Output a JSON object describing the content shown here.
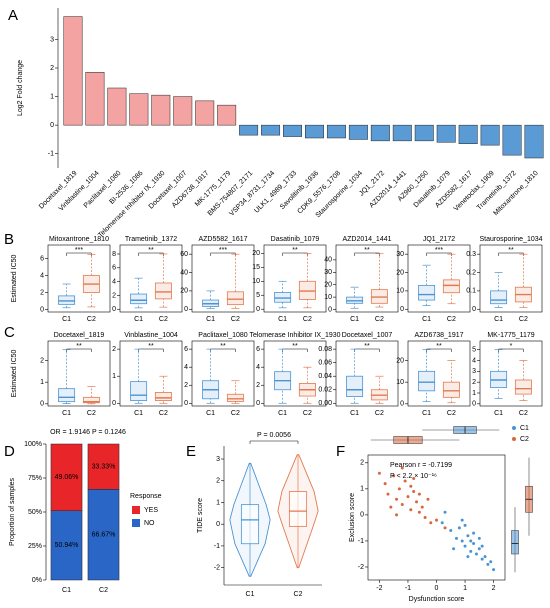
{
  "panel_labels": [
    "A",
    "B",
    "C",
    "D",
    "E",
    "F"
  ],
  "chart_data": [
    {
      "type": "bar",
      "ylabel": "Log2 Fold change",
      "categories": [
        "Docetaxel_1819",
        "Vinblastine_1004",
        "Paclitaxel_1080",
        "BI-2536_1086",
        "Telomerase Inhibitor IX_1930",
        "Docetaxel_1007",
        "AZD6738_1917",
        "MK-1775_1179",
        "BMS-754807_2171",
        "VSP34_8731_1734",
        "ULK1_4989_1733",
        "Savolitinib_1936",
        "CDK9_5576_1708",
        "Staurosporine_1034",
        "JQ1_2172",
        "AZD2014_1441",
        "AZ960_1250",
        "Dasatinib_1079",
        "AZD5582_1617",
        "Venetoclax_1909",
        "Trametinib_1372",
        "Mitoxantrone_1810"
      ],
      "values": [
        3.8,
        1.85,
        1.3,
        1.1,
        1.05,
        1.0,
        0.85,
        0.7,
        -0.35,
        -0.35,
        -0.4,
        -0.45,
        -0.45,
        -0.5,
        -0.55,
        -0.55,
        -0.55,
        -0.6,
        -0.65,
        -0.7,
        -1.05,
        -1.15
      ],
      "colors": [
        "#f4a3a3",
        "#f4a3a3",
        "#f4a3a3",
        "#f4a3a3",
        "#f4a3a3",
        "#f4a3a3",
        "#f4a3a3",
        "#f4a3a3",
        "#5b9bd5",
        "#5b9bd5",
        "#5b9bd5",
        "#5b9bd5",
        "#5b9bd5",
        "#5b9bd5",
        "#5b9bd5",
        "#5b9bd5",
        "#5b9bd5",
        "#5b9bd5",
        "#5b9bd5",
        "#5b9bd5",
        "#5b9bd5",
        "#5b9bd5"
      ],
      "label_colors": [
        "#d23a2a",
        "#d23a2a",
        "#d23a2a",
        "#000000",
        "#d23a2a",
        "#d23a2a",
        "#d23a2a",
        "#d23a2a",
        "#000000",
        "#000000",
        "#000000",
        "#000000",
        "#000000",
        "#d23a2a",
        "#d23a2a",
        "#d23a2a",
        "#000000",
        "#d23a2a",
        "#d23a2a",
        "#000000",
        "#d23a2a",
        "#d23a2a"
      ],
      "ylim": [
        -1.5,
        4.1
      ],
      "yticks": [
        -1,
        0,
        1,
        2,
        3
      ]
    },
    {
      "type": "box",
      "ylabel": "Estimated IC50",
      "categories": [
        "C1",
        "C2"
      ],
      "colors": [
        "#4a94d4",
        "#e3794f"
      ],
      "panels": [
        {
          "title": "Mitoxantrone_1810",
          "annotation": "***",
          "ylim": [
            -0.3,
            7.6
          ],
          "yticks": [
            0,
            2,
            4,
            6
          ],
          "boxes": [
            {
              "min": 0.2,
              "q1": 0.6,
              "median": 1.0,
              "q3": 1.6,
              "max": 3.0
            },
            {
              "min": 0.3,
              "q1": 2.0,
              "median": 3.0,
              "q3": 4.0,
              "max": 6.5
            }
          ]
        },
        {
          "title": "Trametinib_1372",
          "annotation": "**",
          "ylim": [
            -0.4,
            9.3
          ],
          "yticks": [
            0,
            2,
            4,
            6,
            8
          ],
          "boxes": [
            {
              "min": 0.2,
              "q1": 0.8,
              "median": 1.3,
              "q3": 2.2,
              "max": 4.5
            },
            {
              "min": 0.3,
              "q1": 1.5,
              "median": 2.5,
              "q3": 3.8,
              "max": 8
            }
          ]
        },
        {
          "title": "AZD5582_1617",
          "annotation": "***",
          "ylim": [
            -3,
            70
          ],
          "yticks": [
            0,
            20,
            40,
            60
          ],
          "boxes": [
            {
              "min": 1,
              "q1": 3,
              "median": 6,
              "q3": 10,
              "max": 20
            },
            {
              "min": 1,
              "q1": 5,
              "median": 11,
              "q3": 19,
              "max": 60
            }
          ]
        },
        {
          "title": "Dasatinib_1079",
          "annotation": "**",
          "ylim": [
            -1,
            23
          ],
          "yticks": [
            0,
            5,
            10,
            15,
            20
          ],
          "boxes": [
            {
              "min": 0.5,
              "q1": 2.5,
              "median": 4,
              "q3": 6,
              "max": 10
            },
            {
              "min": 0.5,
              "q1": 3.5,
              "median": 6.5,
              "q3": 10,
              "max": 20
            }
          ]
        },
        {
          "title": "AZD2014_1441",
          "annotation": "**",
          "ylim": [
            -2,
            52
          ],
          "yticks": [
            0,
            10,
            20,
            30,
            40
          ],
          "boxes": [
            {
              "min": 1,
              "q1": 5,
              "median": 7,
              "q3": 10,
              "max": 18
            },
            {
              "min": 2,
              "q1": 5,
              "median": 10,
              "q3": 16,
              "max": 45
            }
          ]
        },
        {
          "title": "JQ1_2172",
          "annotation": "***",
          "ylim": [
            -1.5,
            35
          ],
          "yticks": [
            0,
            10,
            20,
            30
          ],
          "boxes": [
            {
              "min": 2,
              "q1": 5,
              "median": 8,
              "q3": 13,
              "max": 24
            },
            {
              "min": 3,
              "q1": 9,
              "median": 13,
              "q3": 16,
              "max": 30
            }
          ]
        },
        {
          "title": "Staurosporine_1034",
          "annotation": "**",
          "ylim": [
            -0.015,
            0.35
          ],
          "yticks": [
            0,
            0.1,
            0.2,
            0.3
          ],
          "boxes": [
            {
              "min": 0.01,
              "q1": 0.03,
              "median": 0.05,
              "q3": 0.1,
              "max": 0.2
            },
            {
              "min": 0.01,
              "q1": 0.04,
              "median": 0.08,
              "q3": 0.12,
              "max": 0.3
            }
          ]
        }
      ]
    },
    {
      "type": "box",
      "ylabel": "Estimated IC50",
      "categories": [
        "C1",
        "C2"
      ],
      "colors": [
        "#4a94d4",
        "#e3794f"
      ],
      "panels": [
        {
          "title": "Docetaxel_1819",
          "annotation": "**",
          "ylim": [
            -0.1,
            2.9
          ],
          "yticks": [
            0,
            1,
            2
          ],
          "boxes": [
            {
              "min": 0.01,
              "q1": 0.1,
              "median": 0.3,
              "q3": 0.7,
              "max": 2.5
            },
            {
              "min": 0,
              "q1": 0.05,
              "median": 0.1,
              "q3": 0.3,
              "max": 0.8
            }
          ]
        },
        {
          "title": "Vinblastine_1004",
          "annotation": "**",
          "ylim": [
            -0.1,
            2.3
          ],
          "yticks": [
            0,
            1,
            2
          ],
          "boxes": [
            {
              "min": 0,
              "q1": 0.1,
              "median": 0.3,
              "q3": 0.8,
              "max": 2
            },
            {
              "min": 0,
              "q1": 0.1,
              "median": 0.2,
              "q3": 0.4,
              "max": 1
            }
          ]
        },
        {
          "title": "Paclitaxel_1080",
          "annotation": "**",
          "ylim": [
            -0.3,
            6.9
          ],
          "yticks": [
            0,
            2,
            4,
            6
          ],
          "boxes": [
            {
              "min": 0,
              "q1": 0.5,
              "median": 1.5,
              "q3": 2.5,
              "max": 6
            },
            {
              "min": 0,
              "q1": 0.2,
              "median": 0.5,
              "q3": 1.0,
              "max": 2.5
            }
          ]
        },
        {
          "title": "Telomerase Inhibitor IX_1930",
          "annotation": "**",
          "ylim": [
            -0.3,
            6.9
          ],
          "yticks": [
            0,
            2,
            4,
            6
          ],
          "boxes": [
            {
              "min": 0,
              "q1": 1.5,
              "median": 2.5,
              "q3": 3.5,
              "max": 6
            },
            {
              "min": 0,
              "q1": 0.8,
              "median": 1.5,
              "q3": 2.2,
              "max": 4
            }
          ]
        },
        {
          "title": "Docetaxel_1007",
          "annotation": "**",
          "ylim": [
            -0.004,
            0.092
          ],
          "yticks": [
            {
              "value": 0,
              "label": "0.00"
            },
            0.02,
            0.04,
            0.06,
            0.08
          ],
          "boxes": [
            {
              "min": 0,
              "q1": 0.01,
              "median": 0.02,
              "q3": 0.04,
              "max": 0.08
            },
            {
              "min": 0,
              "q1": 0.005,
              "median": 0.012,
              "q3": 0.02,
              "max": 0.04
            }
          ]
        },
        {
          "title": "AZD6738_1917",
          "annotation": "**",
          "ylim": [
            -1,
            29
          ],
          "yticks": [
            0,
            10,
            20
          ],
          "boxes": [
            {
              "min": 1,
              "q1": 6,
              "median": 10,
              "q3": 15,
              "max": 25
            },
            {
              "min": 0.5,
              "q1": 3,
              "median": 6,
              "q3": 10,
              "max": 20
            }
          ]
        },
        {
          "title": "MK-1775_1179",
          "annotation": "*",
          "ylim": [
            -0.2,
            5.8
          ],
          "yticks": [
            0,
            1,
            2,
            3,
            4,
            5
          ],
          "boxes": [
            {
              "min": 0.5,
              "q1": 1.5,
              "median": 2.2,
              "q3": 3,
              "max": 5
            },
            {
              "min": 0.3,
              "q1": 0.9,
              "median": 1.4,
              "q3": 2.2,
              "max": 4
            }
          ]
        }
      ]
    },
    {
      "type": "stacked_bar",
      "title": "OR = 1.9146 P = 0.1246",
      "ylabel": "Proportion of samples",
      "legend_title": "Response",
      "categories": [
        "C1",
        "C2"
      ],
      "series": [
        {
          "name": "NO",
          "color": "#2a66c6",
          "values": [
            50.94,
            66.67
          ],
          "value_labels": [
            "50.94%",
            "66.67%"
          ]
        },
        {
          "name": "YES",
          "color": "#e8262a",
          "values": [
            49.06,
            33.33
          ],
          "value_labels": [
            "49.06%",
            "33.33%"
          ]
        }
      ],
      "ylim": [
        0,
        100
      ],
      "yticks": [
        {
          "value": 0,
          "label": "0%"
        },
        {
          "value": 25,
          "label": "25%"
        },
        {
          "value": 50,
          "label": "50%"
        },
        {
          "value": 75,
          "label": "75%"
        },
        {
          "value": 100,
          "label": "100%"
        }
      ]
    },
    {
      "type": "violin",
      "annotation": "P = 0.0056",
      "ylabel": "TIDE score",
      "categories": [
        "C1",
        "C2"
      ],
      "colors": [
        "#4a94d4",
        "#e3794f"
      ],
      "boxes": [
        {
          "min": -2.4,
          "q1": -0.9,
          "median": 0.2,
          "q3": 0.9,
          "max": 2.8
        },
        {
          "min": -2.0,
          "q1": -0.1,
          "median": 0.6,
          "q3": 1.5,
          "max": 3.2
        }
      ],
      "ylim": [
        -2.8,
        3.6
      ],
      "yticks": [
        -2,
        -1,
        0,
        1,
        2,
        3
      ]
    },
    {
      "type": "scatter",
      "xlabel": "Dysfunction score",
      "ylabel": "Exclusion score",
      "annotations": [
        "Pearson r = -0.7199",
        "P < 2.2 × 10⁻¹⁶"
      ],
      "series": [
        {
          "name": "C1",
          "color": "#4a94d4",
          "x": [
            0.2,
            0.5,
            0.7,
            0.9,
            1.0,
            1.1,
            1.2,
            1.3,
            1.4,
            1.5,
            1.6,
            1.7,
            1.8,
            1.9,
            0.8,
            1.0,
            1.2,
            0.6,
            1.5,
            2.0,
            0.3,
            1.1,
            1.6,
            0.9,
            1.3
          ],
          "y": [
            -0.3,
            -0.6,
            -0.9,
            -1.0,
            -1.2,
            -0.8,
            -1.4,
            -1.1,
            -1.5,
            -1.3,
            -1.7,
            -1.6,
            -1.9,
            -1.8,
            -0.5,
            -0.4,
            -1.0,
            -1.3,
            -0.9,
            -2.1,
            0.1,
            -1.6,
            -1.2,
            -0.2,
            -0.7
          ],
          "x_box": {
            "min": -0.5,
            "q1": 0.6,
            "median": 1.0,
            "q3": 1.4,
            "max": 2.2
          },
          "y_box": {
            "min": -2.2,
            "q1": -1.5,
            "median": -1.1,
            "q3": -0.6,
            "max": 0.3
          }
        },
        {
          "name": "C2",
          "color": "#d9663c",
          "x": [
            -2.0,
            -1.8,
            -1.7,
            -1.5,
            -1.4,
            -1.3,
            -1.2,
            -1.1,
            -1.0,
            -0.9,
            -0.8,
            -0.7,
            -0.6,
            -0.5,
            -0.4,
            -0.3,
            -0.2,
            -1.6,
            -1.2,
            -0.9,
            -0.6,
            0.0,
            0.3,
            -1.4,
            -0.8
          ],
          "y": [
            1.6,
            1.2,
            0.8,
            1.5,
            0.6,
            1.0,
            0.4,
            1.3,
            0.7,
            0.2,
            0.9,
            0.5,
            0.1,
            0.3,
            -0.1,
            0.6,
            -0.3,
            0.3,
            1.8,
            1.1,
            0.8,
            -0.2,
            -0.5,
            0.0,
            1.4
          ],
          "x_box": {
            "min": -2.3,
            "q1": -1.5,
            "median": -1.0,
            "q3": -0.5,
            "max": 0.8
          },
          "y_box": {
            "min": -0.8,
            "q1": 0.1,
            "median": 0.6,
            "q3": 1.1,
            "max": 2.2
          }
        }
      ],
      "xlim": [
        -2.4,
        2.4
      ],
      "ylim": [
        -2.5,
        2.3
      ],
      "xticks": [
        -2,
        -1,
        0,
        1,
        2
      ],
      "yticks": [
        -2,
        -1,
        0,
        1,
        2
      ]
    }
  ]
}
